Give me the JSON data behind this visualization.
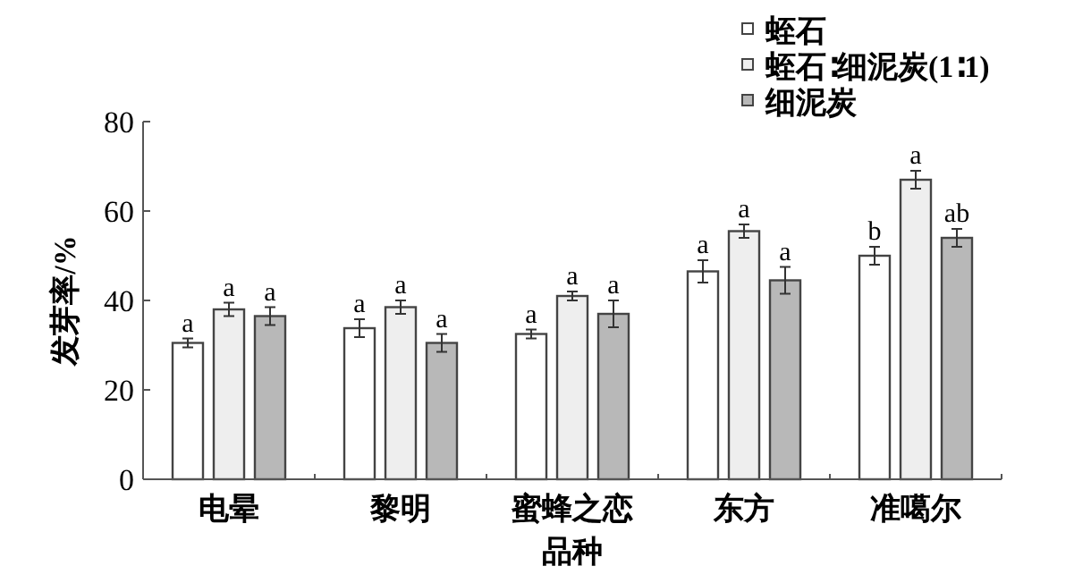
{
  "chart_data": {
    "type": "bar",
    "xlabel": "品种",
    "ylabel": "发芽率/%",
    "categories": [
      "电晕",
      "黎明",
      "蜜蜂之恋",
      "东方",
      "准噶尔"
    ],
    "series": [
      {
        "name": "蛭石",
        "color": "#ffffff",
        "values": [
          30.5,
          33.8,
          32.5,
          46.5,
          50
        ],
        "errors": [
          1,
          2,
          1,
          2.5,
          2
        ],
        "value_labels": [
          "a",
          "a",
          "a",
          "a",
          "b"
        ]
      },
      {
        "name": "蛭石∶细泥炭(1∶1)",
        "color": "#eeeeee",
        "values": [
          38,
          38.5,
          41,
          55.5,
          67
        ],
        "errors": [
          1.5,
          1.5,
          1,
          1.5,
          2
        ],
        "value_labels": [
          "a",
          "a",
          "a",
          "a",
          "a"
        ]
      },
      {
        "name": "细泥炭",
        "color": "#b8b8b8",
        "values": [
          36.5,
          30.5,
          37,
          44.5,
          54
        ],
        "errors": [
          2,
          2,
          3,
          3,
          2
        ],
        "value_labels": [
          "a",
          "a",
          "a",
          "a",
          "ab"
        ]
      }
    ],
    "ylim": [
      0,
      80
    ],
    "yticks": [
      0,
      20,
      40,
      60,
      80
    ],
    "legend": "top right"
  }
}
